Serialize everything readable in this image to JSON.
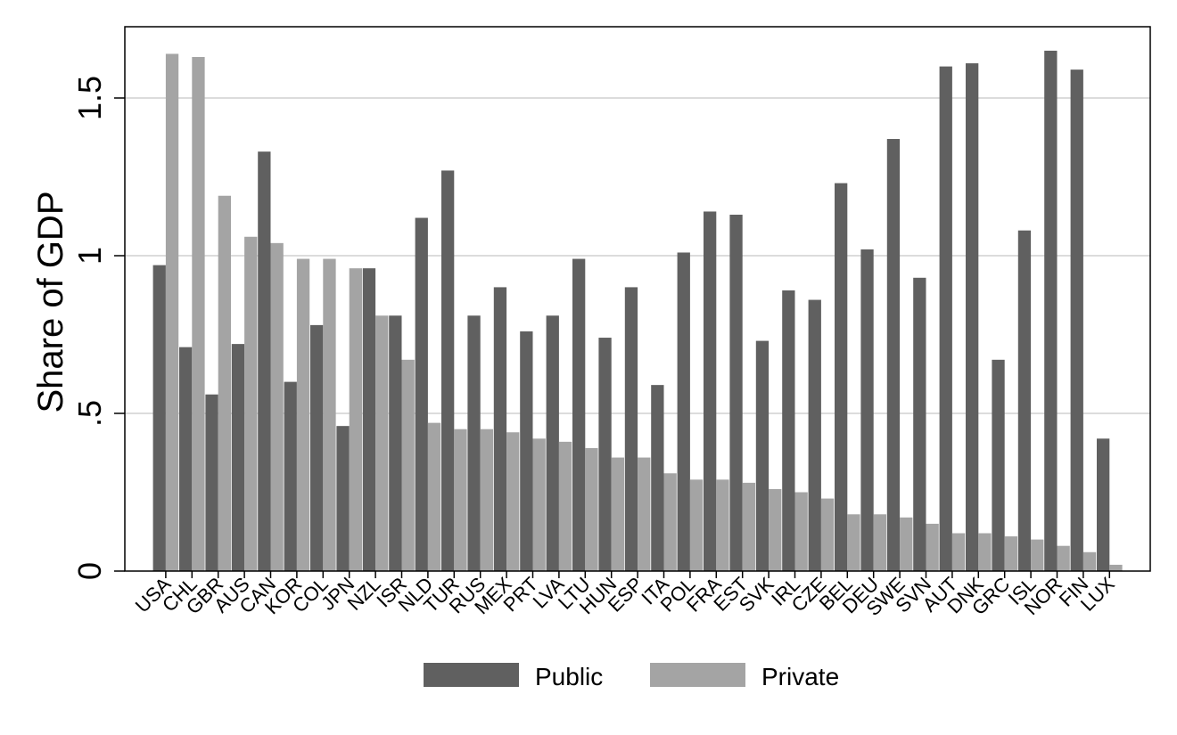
{
  "chart_data": {
    "type": "bar",
    "title": "",
    "xlabel": "",
    "ylabel": "Share of GDP",
    "ylim": [
      0,
      1.72
    ],
    "yticks": [
      0,
      0.5,
      1,
      1.5
    ],
    "ytick_labels": [
      "0",
      ".5",
      "1",
      "1.5"
    ],
    "grid": true,
    "legend_position": "bottom",
    "categories": [
      "USA",
      "CHL",
      "GBR",
      "AUS",
      "CAN",
      "KOR",
      "COL",
      "JPN",
      "NZL",
      "ISR",
      "NLD",
      "TUR",
      "RUS",
      "MEX",
      "PRT",
      "LVA",
      "LTU",
      "HUN",
      "ESP",
      "ITA",
      "POL",
      "FRA",
      "EST",
      "SVK",
      "IRL",
      "CZE",
      "BEL",
      "DEU",
      "SWE",
      "SVN",
      "AUT",
      "DNK",
      "GRC",
      "ISL",
      "NOR",
      "FIN",
      "LUX"
    ],
    "series": [
      {
        "name": "Public",
        "color": "#606060",
        "values": [
          0.97,
          0.71,
          0.56,
          0.72,
          1.33,
          0.6,
          0.78,
          0.46,
          0.96,
          0.81,
          1.12,
          1.27,
          0.81,
          0.9,
          0.76,
          0.81,
          0.99,
          0.74,
          0.9,
          0.59,
          1.01,
          1.14,
          1.13,
          0.73,
          0.89,
          0.86,
          1.23,
          1.02,
          1.37,
          0.93,
          1.6,
          1.61,
          0.67,
          1.08,
          1.65,
          1.59,
          0.42
        ]
      },
      {
        "name": "Private",
        "color": "#a4a4a4",
        "values": [
          1.64,
          1.63,
          1.19,
          1.06,
          1.04,
          0.99,
          0.99,
          0.96,
          0.81,
          0.67,
          0.47,
          0.45,
          0.45,
          0.44,
          0.42,
          0.41,
          0.39,
          0.36,
          0.36,
          0.31,
          0.29,
          0.29,
          0.28,
          0.26,
          0.25,
          0.23,
          0.18,
          0.18,
          0.17,
          0.15,
          0.12,
          0.12,
          0.11,
          0.1,
          0.08,
          0.06,
          0.02
        ]
      }
    ]
  }
}
